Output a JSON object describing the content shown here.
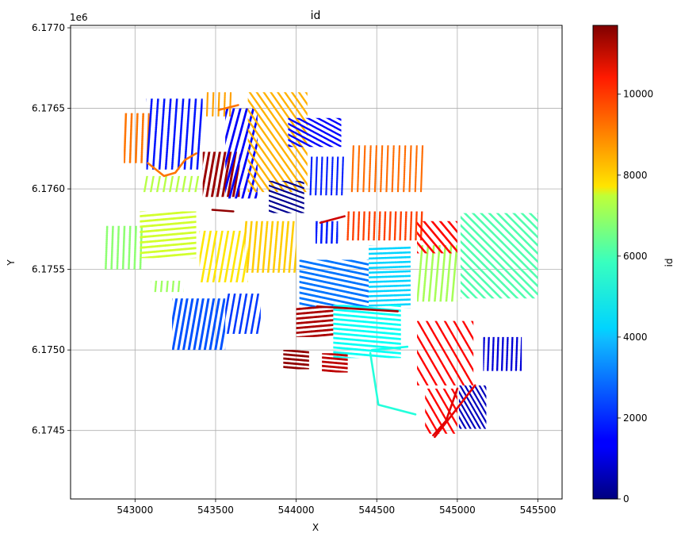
{
  "chart_data": {
    "type": "scatter",
    "title": "id",
    "xlabel": "X",
    "ylabel": "Y",
    "y_offset_label": "1e6",
    "xlim": [
      542600,
      545650
    ],
    "ylim": [
      6174075,
      6177015
    ],
    "x_ticks": [
      543000,
      543500,
      544000,
      544500,
      545000,
      545500
    ],
    "x_tick_labels": [
      "543000",
      "543500",
      "544000",
      "544500",
      "545000",
      "545500"
    ],
    "y_ticks": [
      6174500,
      6175000,
      6175500,
      6176000,
      6176500,
      6177000
    ],
    "y_tick_labels": [
      "6.1745",
      "6.1750",
      "6.1755",
      "6.1760",
      "6.1765",
      "6.1770"
    ],
    "grid": true,
    "colorbar": {
      "label": "id",
      "colormap": "jet",
      "range": [
        0,
        11700
      ],
      "ticks": [
        0,
        2000,
        4000,
        6000,
        8000,
        10000
      ],
      "tick_labels": [
        "0",
        "2000",
        "4000",
        "6000",
        "8000",
        "10000"
      ]
    },
    "fields": [
      {
        "id": 8900,
        "x": [
          542930,
          543090
        ],
        "y": [
          6176160,
          6176470
        ],
        "angle": 88,
        "gap": 22,
        "stroke": 2.6
      },
      {
        "id": 1700,
        "x": [
          543070,
          543420
        ],
        "y": [
          6176120,
          6176560
        ],
        "angle": 86,
        "gap": 24,
        "stroke": 2.6
      },
      {
        "id": 8400,
        "x": [
          543440,
          543600
        ],
        "y": [
          6176450,
          6176600
        ],
        "angle": 88,
        "gap": 22,
        "stroke": 2.2
      },
      {
        "id": 11400,
        "x": [
          543420,
          543650
        ],
        "y": [
          6175950,
          6176230
        ],
        "angle": 80,
        "gap": 20,
        "stroke": 3.0
      },
      {
        "id": 1400,
        "x": [
          543560,
          543760
        ],
        "y": [
          6175940,
          6176500
        ],
        "angle": 75,
        "gap": 24,
        "stroke": 2.8
      },
      {
        "id": 8200,
        "x": [
          543700,
          544070
        ],
        "y": [
          6175980,
          6176600
        ],
        "angle": -55,
        "gap": 22,
        "stroke": 2.4
      },
      {
        "id": 1500,
        "x": [
          543950,
          544280
        ],
        "y": [
          6176260,
          6176440
        ],
        "angle": -28,
        "gap": 18,
        "stroke": 2.4
      },
      {
        "id": 200,
        "x": [
          543830,
          544050
        ],
        "y": [
          6175850,
          6176050
        ],
        "angle": -20,
        "gap": 18,
        "stroke": 2.2
      },
      {
        "id": 1800,
        "x": [
          544080,
          544300
        ],
        "y": [
          6175960,
          6176200
        ],
        "angle": 88,
        "gap": 20,
        "stroke": 2.2
      },
      {
        "id": 9000,
        "x": [
          544330,
          544800
        ],
        "y": [
          6175980,
          6176270
        ],
        "angle": 88,
        "gap": 22,
        "stroke": 2.2
      },
      {
        "id": 6500,
        "x": [
          543050,
          543400
        ],
        "y": [
          6175980,
          6176080
        ],
        "angle": 80,
        "gap": 24,
        "stroke": 2.4
      },
      {
        "id": 6000,
        "x": [
          542800,
          543060
        ],
        "y": [
          6175500,
          6175770
        ],
        "angle": 88,
        "gap": 22,
        "stroke": 2.6
      },
      {
        "id": 6800,
        "x": [
          543030,
          543380
        ],
        "y": [
          6175570,
          6175860
        ],
        "angle": 5,
        "gap": 20,
        "stroke": 2.8
      },
      {
        "id": 7600,
        "x": [
          543400,
          543700
        ],
        "y": [
          6175420,
          6175740
        ],
        "angle": 80,
        "gap": 22,
        "stroke": 2.6
      },
      {
        "id": 7900,
        "x": [
          543680,
          544000
        ],
        "y": [
          6175480,
          6175800
        ],
        "angle": 85,
        "gap": 20,
        "stroke": 2.6
      },
      {
        "id": 6200,
        "x": [
          543100,
          543300
        ],
        "y": [
          6175360,
          6175430
        ],
        "angle": 85,
        "gap": 22,
        "stroke": 2.4
      },
      {
        "id": 2400,
        "x": [
          543230,
          543560
        ],
        "y": [
          6175000,
          6175320
        ],
        "angle": 80,
        "gap": 20,
        "stroke": 3.0
      },
      {
        "id": 2100,
        "x": [
          543560,
          543780
        ],
        "y": [
          6175100,
          6175350
        ],
        "angle": 80,
        "gap": 22,
        "stroke": 2.6
      },
      {
        "id": 9500,
        "x": [
          544300,
          544800
        ],
        "y": [
          6175680,
          6175860
        ],
        "angle": 88,
        "gap": 20,
        "stroke": 2.4
      },
      {
        "id": 1800,
        "x": [
          544120,
          544260
        ],
        "y": [
          6175660,
          6175800
        ],
        "angle": 88,
        "gap": 20,
        "stroke": 2.6
      },
      {
        "id": 2800,
        "x": [
          544020,
          544450
        ],
        "y": [
          6175260,
          6175560
        ],
        "angle": -12,
        "gap": 20,
        "stroke": 2.8
      },
      {
        "id": 3900,
        "x": [
          544450,
          544710
        ],
        "y": [
          6175260,
          6175650
        ],
        "angle": 2,
        "gap": 18,
        "stroke": 2.6
      },
      {
        "id": 4500,
        "x": [
          544230,
          544650
        ],
        "y": [
          6174950,
          6175280
        ],
        "angle": -5,
        "gap": 18,
        "stroke": 2.8
      },
      {
        "id": 11200,
        "x": [
          544000,
          544230
        ],
        "y": [
          6175080,
          6175270
        ],
        "angle": 5,
        "gap": 18,
        "stroke": 2.8
      },
      {
        "id": 11500,
        "x": [
          543920,
          544080
        ],
        "y": [
          6174880,
          6175000
        ],
        "angle": -5,
        "gap": 16,
        "stroke": 2.8
      },
      {
        "id": 11000,
        "x": [
          544160,
          544320
        ],
        "y": [
          6174860,
          6174980
        ],
        "angle": -5,
        "gap": 16,
        "stroke": 2.8
      },
      {
        "id": 6300,
        "x": [
          544750,
          545000
        ],
        "y": [
          6175300,
          6175650
        ],
        "angle": 85,
        "gap": 22,
        "stroke": 2.6
      },
      {
        "id": 5300,
        "x": [
          545020,
          545500
        ],
        "y": [
          6175320,
          6175850
        ],
        "angle": -45,
        "gap": 22,
        "stroke": 2.6
      },
      {
        "id": 10200,
        "x": [
          544750,
          545000
        ],
        "y": [
          6175600,
          6175800
        ],
        "angle": -50,
        "gap": 24,
        "stroke": 2.6
      },
      {
        "id": 10200,
        "x": [
          544750,
          545100
        ],
        "y": [
          6174780,
          6175180
        ],
        "angle": -60,
        "gap": 30,
        "stroke": 2.4
      },
      {
        "id": 10200,
        "x": [
          544800,
          545000
        ],
        "y": [
          6174480,
          6174760
        ],
        "angle": -60,
        "gap": 26,
        "stroke": 2.4
      },
      {
        "id": 1000,
        "x": [
          545160,
          545400
        ],
        "y": [
          6174870,
          6175080
        ],
        "angle": 88,
        "gap": 18,
        "stroke": 2.4
      },
      {
        "id": 700,
        "x": [
          545010,
          545180
        ],
        "y": [
          6174510,
          6174780
        ],
        "angle": -60,
        "gap": 16,
        "stroke": 2.2
      }
    ],
    "lines": [
      {
        "id": 8900,
        "x": [
          543080,
          543180,
          543250,
          543310,
          543380
        ],
        "y": [
          6176160,
          6176080,
          6176100,
          6176180,
          6176220
        ]
      },
      {
        "id": 11300,
        "x": [
          544130,
          544630
        ],
        "y": [
          6175270,
          6175240
        ]
      },
      {
        "id": 4800,
        "x": [
          544460,
          544510,
          544740
        ],
        "y": [
          6174980,
          6174660,
          6174600
        ]
      },
      {
        "id": 4600,
        "x": [
          544470,
          544690
        ],
        "y": [
          6175000,
          6175020
        ]
      },
      {
        "id": 10800,
        "x": [
          544150,
          544300
        ],
        "y": [
          6175790,
          6175830
        ]
      },
      {
        "id": 10600,
        "x": [
          545000,
          544930,
          544850
        ],
        "y": [
          6174760,
          6174560,
          6174470
        ]
      },
      {
        "id": 10500,
        "x": [
          544860,
          545110
        ],
        "y": [
          6174460,
          6174780
        ]
      },
      {
        "id": 11500,
        "x": [
          543480,
          543610
        ],
        "y": [
          6175870,
          6175860
        ]
      },
      {
        "id": 8900,
        "x": [
          543520,
          543640
        ],
        "y": [
          6176490,
          6176520
        ]
      }
    ]
  }
}
